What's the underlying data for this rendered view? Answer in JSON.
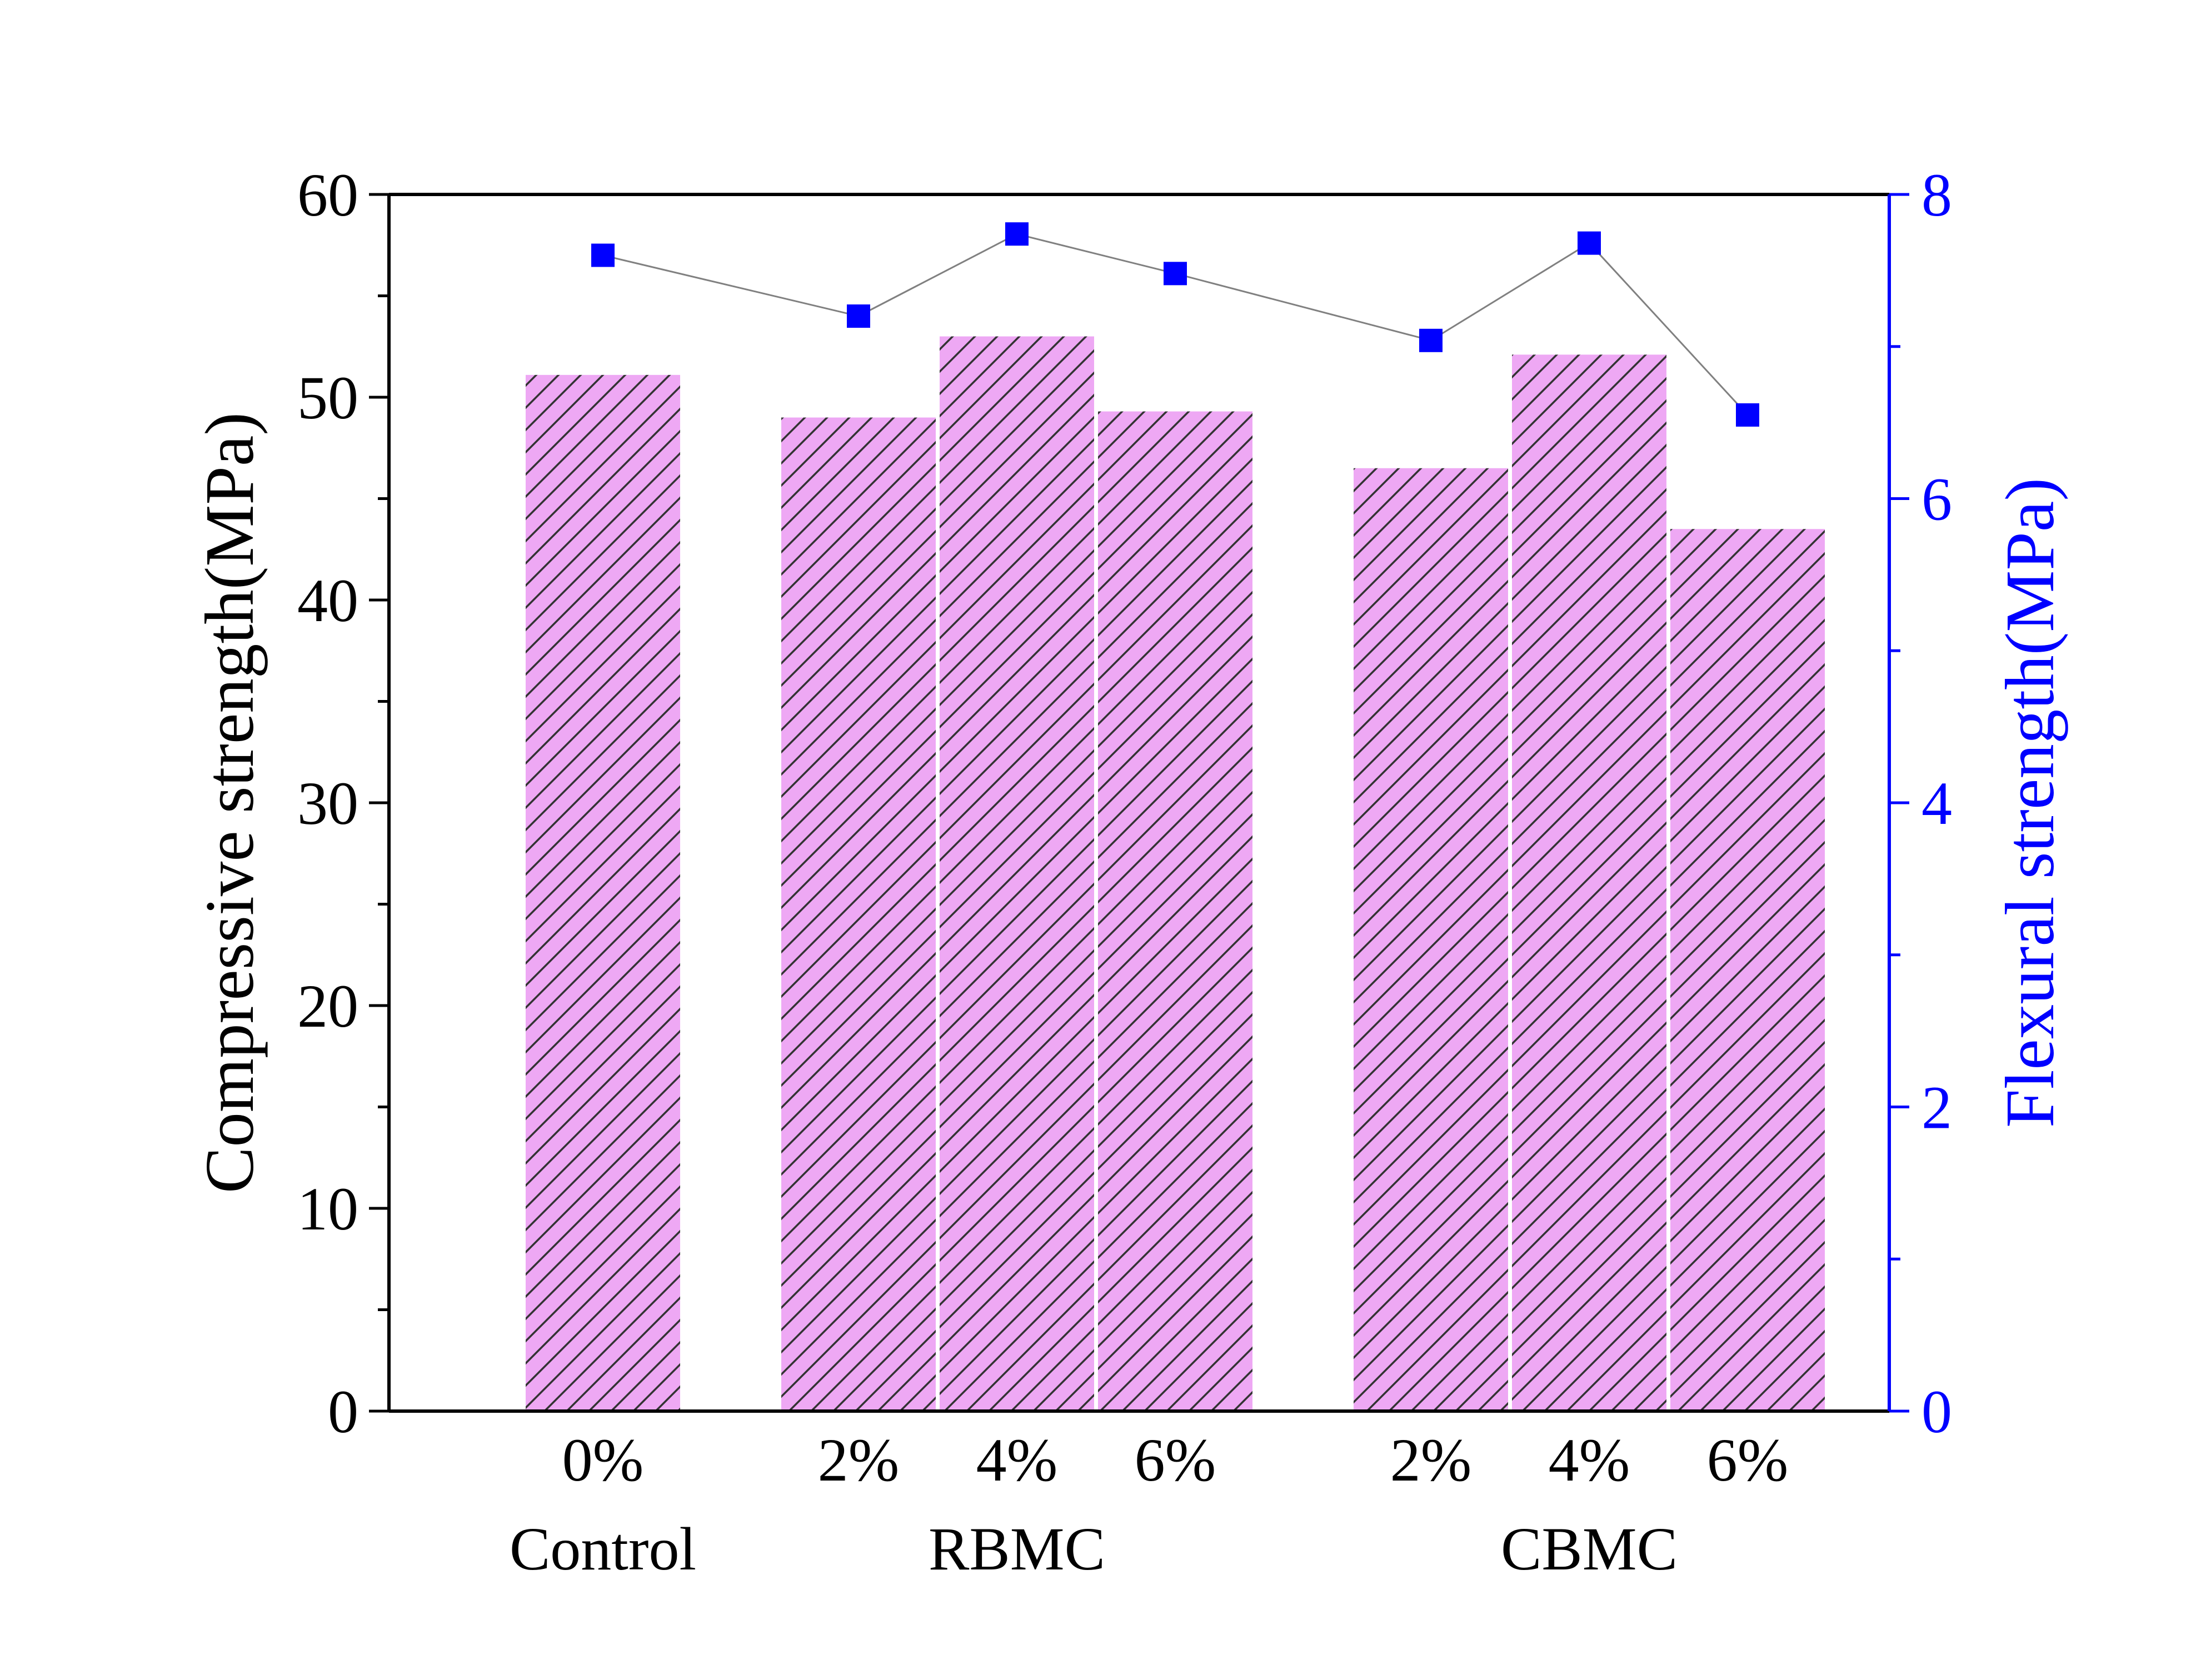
{
  "chart_data": {
    "type": "bar",
    "title": "",
    "categories": [
      "0%",
      "2%",
      "4%",
      "6%",
      "2%",
      "4%",
      "6%"
    ],
    "groups": [
      {
        "label": "Control",
        "categories": [
          "0%"
        ]
      },
      {
        "label": "RBMC",
        "categories": [
          "2%",
          "4%",
          "6%"
        ]
      },
      {
        "label": "CBMC",
        "categories": [
          "2%",
          "4%",
          "6%"
        ]
      }
    ],
    "series": [
      {
        "type": "bar",
        "axis": "left",
        "values": [
          51.1,
          49.0,
          53.0,
          49.3,
          46.5,
          52.1,
          43.5
        ],
        "color": "#EEA8F4",
        "pattern": "diagonal-hatch"
      },
      {
        "type": "line",
        "axis": "right",
        "values": [
          7.6,
          7.2,
          7.74,
          7.48,
          7.04,
          7.68,
          6.55
        ],
        "color": "#0000FF",
        "line_color": "#808080"
      }
    ],
    "ylabel": "Compressive strength(MPa)",
    "ylim": [
      0,
      60
    ],
    "yticks": [
      0,
      10,
      20,
      30,
      40,
      50,
      60
    ],
    "y2label": "Flexural strength(MPa)",
    "y2lim": [
      0,
      8
    ],
    "y2ticks": [
      0,
      2,
      4,
      6,
      8
    ],
    "y2_color": "#0000FF",
    "grid": false,
    "legend": "none"
  }
}
